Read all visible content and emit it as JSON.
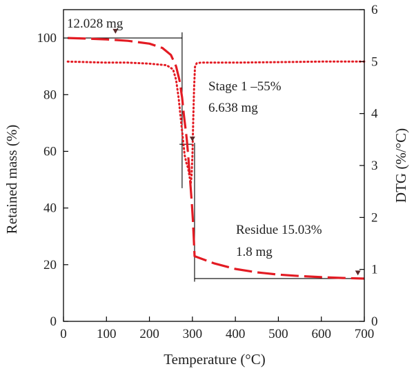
{
  "chart_data": {
    "type": "line",
    "xlabel": "Temperature (°C)",
    "ylabel": "Retained mass (%)",
    "y2label": "DTG (%/°C)",
    "xlim": [
      0,
      700
    ],
    "ylim": [
      0,
      110
    ],
    "y2lim": [
      0,
      6
    ],
    "x_ticks": [
      0,
      100,
      200,
      300,
      400,
      500,
      600,
      700
    ],
    "y_ticks": [
      0,
      20,
      40,
      60,
      80,
      100
    ],
    "y2_ticks": [
      0,
      1,
      2,
      3,
      4,
      5,
      6
    ],
    "grid": false,
    "series": [
      {
        "axis": "left",
        "style": "dashed",
        "color": "#e31b23",
        "x": [
          10,
          50,
          100,
          150,
          200,
          230,
          250,
          262,
          270,
          276,
          280,
          284,
          287,
          290,
          293,
          296,
          299,
          301,
          303,
          305,
          350,
          400,
          450,
          500,
          550,
          600,
          650,
          700
        ],
        "y": [
          100,
          99.8,
          99.5,
          99,
          98,
          96.5,
          94,
          90,
          85,
          79,
          73,
          68,
          64,
          59,
          53,
          47,
          41,
          36,
          30,
          23,
          20.5,
          18.5,
          17.3,
          16.5,
          16,
          15.6,
          15.3,
          15.1
        ]
      },
      {
        "axis": "right",
        "style": "dotted",
        "color": "#e31b23",
        "x": [
          10,
          100,
          150,
          200,
          240,
          255,
          262,
          268,
          273,
          278,
          282,
          286,
          290,
          293,
          296,
          298,
          300,
          302,
          304,
          306,
          310,
          320,
          400,
          500,
          600,
          700
        ],
        "y": [
          5,
          4.98,
          4.98,
          4.96,
          4.93,
          4.85,
          4.65,
          4.3,
          3.9,
          3.5,
          3.2,
          3.05,
          2.95,
          2.8,
          2.65,
          2.8,
          3.2,
          3.9,
          4.5,
          4.9,
          4.97,
          4.98,
          4.98,
          4.99,
          5,
          5
        ]
      }
    ],
    "annotations": [
      {
        "text": "12.028 mg"
      },
      {
        "text": "Stage 1 –55%"
      },
      {
        "text": "6.638 mg"
      },
      {
        "text": "Residue 15.03%"
      },
      {
        "text": "1.8 mg"
      }
    ]
  }
}
